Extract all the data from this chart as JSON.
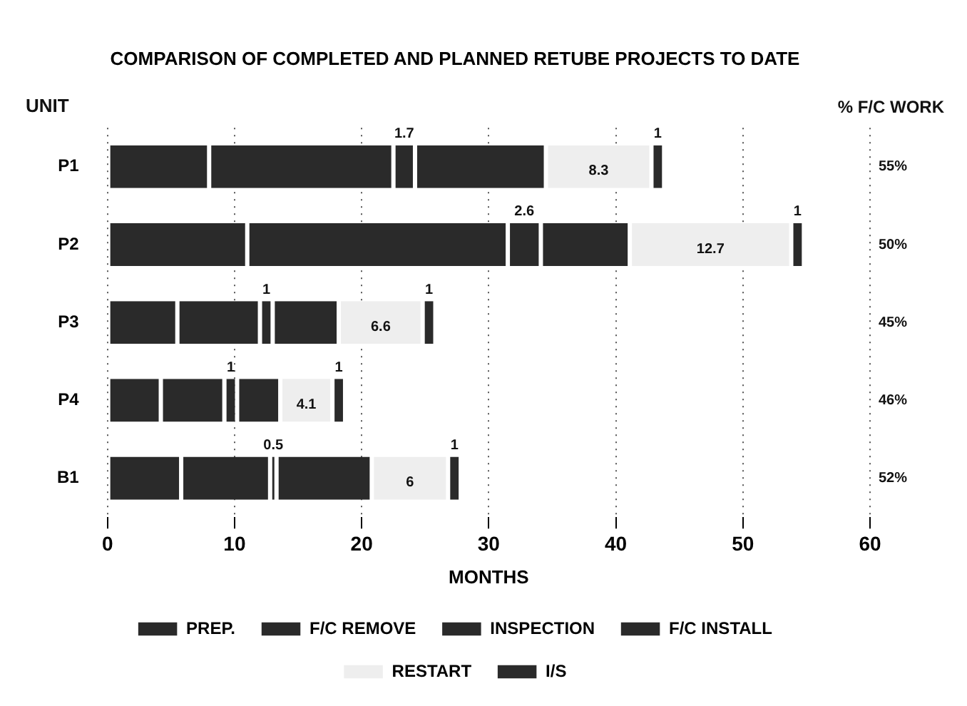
{
  "chart_data": {
    "type": "bar",
    "orientation": "horizontal",
    "stacked": true,
    "title": "COMPARISON OF COMPLETED AND PLANNED RETUBE PROJECTS TO DATE",
    "xlabel": "MONTHS",
    "ylabel": "UNIT",
    "categories": [
      "P1",
      "P2",
      "P3",
      "P4",
      "B1"
    ],
    "xlim": [
      0,
      60
    ],
    "xticks": [
      0,
      10,
      20,
      30,
      40,
      50,
      60
    ],
    "grid": "x",
    "line_style": "dotted",
    "legend": "bottom",
    "series": [
      {
        "name": "PREP.",
        "color": "#2a2a2a",
        "values": [
          8,
          11,
          5.5,
          4.2,
          5.8
        ]
      },
      {
        "name": "F/C REMOVE",
        "color": "#2a2a2a",
        "values": [
          14.5,
          20.5,
          6.5,
          5,
          7
        ]
      },
      {
        "name": "INSPECTION",
        "color": "#2a2a2a",
        "values": [
          1.7,
          2.6,
          1,
          1,
          0.5
        ],
        "value_labels": [
          "1.7",
          "2.6",
          "1",
          "1",
          "0.5"
        ]
      },
      {
        "name": "F/C INSTALL",
        "color": "#2a2a2a",
        "values": [
          10.3,
          7,
          5.2,
          3.4,
          7.5
        ]
      },
      {
        "name": "RESTART",
        "color": "#eeeeee",
        "values": [
          8.3,
          12.7,
          6.6,
          4.1,
          6
        ],
        "value_labels": [
          "8.3",
          "12.7",
          "6.6",
          "4.1",
          "6"
        ]
      },
      {
        "name": "I/S",
        "color": "#2a2a2a",
        "values": [
          1,
          1,
          1,
          1,
          1
        ],
        "value_labels": [
          "1",
          "1",
          "1",
          "1",
          "1"
        ]
      }
    ],
    "annotations": [
      "% F/C WORK",
      "55%",
      "50%",
      "45%",
      "46%",
      "52%"
    ]
  }
}
